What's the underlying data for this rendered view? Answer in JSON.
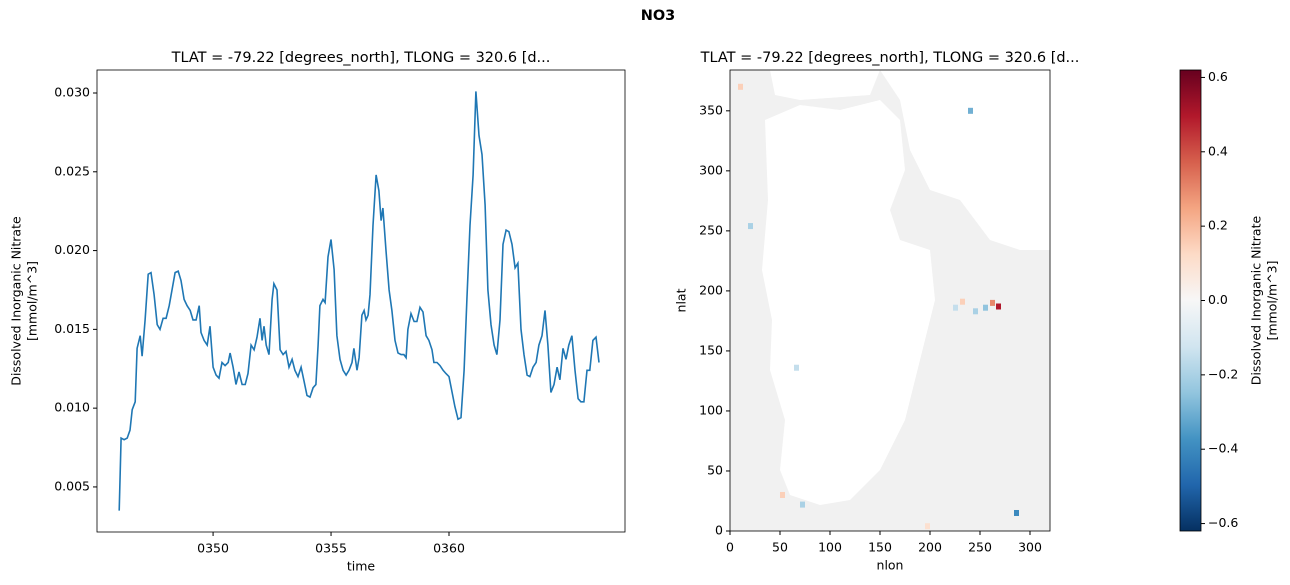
{
  "suptitle": "NO3",
  "chart_data": [
    {
      "type": "line",
      "title": "TLAT = -79.22 [degrees_north], TLONG = 320.6 [d...",
      "xlabel": "time",
      "ylabel": [
        "Dissolved Inorganic Nitrate",
        "[mmol/m^3]"
      ],
      "color": "#1f77b4",
      "x": [
        346.02,
        346.1,
        346.23,
        346.36,
        346.48,
        346.57,
        346.7,
        346.78,
        346.91,
        346.99,
        347.12,
        347.25,
        347.37,
        347.5,
        347.63,
        347.75,
        347.88,
        348.01,
        348.14,
        348.26,
        348.39,
        348.52,
        348.64,
        348.77,
        348.9,
        349.03,
        349.15,
        349.28,
        349.41,
        349.49,
        349.62,
        349.75,
        349.87,
        350.0,
        350.13,
        350.25,
        350.38,
        350.51,
        350.64,
        350.72,
        350.85,
        350.97,
        351.1,
        351.23,
        351.36,
        351.48,
        351.61,
        351.74,
        351.86,
        351.99,
        352.08,
        352.16,
        352.25,
        352.37,
        352.5,
        352.58,
        352.71,
        352.84,
        352.97,
        353.09,
        353.22,
        353.35,
        353.47,
        353.6,
        353.73,
        353.86,
        353.98,
        354.11,
        354.24,
        354.36,
        354.45,
        354.53,
        354.66,
        354.75,
        354.87,
        355.0,
        355.13,
        355.25,
        355.38,
        355.51,
        355.64,
        355.76,
        355.89,
        355.97,
        356.1,
        356.19,
        356.31,
        356.4,
        356.48,
        356.57,
        356.65,
        356.78,
        356.91,
        357.03,
        357.12,
        357.2,
        357.33,
        357.46,
        357.58,
        357.71,
        357.84,
        357.97,
        358.09,
        358.18,
        358.26,
        358.39,
        358.52,
        358.64,
        358.77,
        358.9,
        359.03,
        359.15,
        359.28,
        359.36,
        359.49,
        359.62,
        359.75,
        359.87,
        360.0,
        360.13,
        360.25,
        360.38,
        360.51,
        360.64,
        360.76,
        360.89,
        361.02,
        361.14,
        361.27,
        361.4,
        361.53,
        361.65,
        361.78,
        361.91,
        362.03,
        362.16,
        362.29,
        362.42,
        362.54,
        362.67,
        362.8,
        362.92,
        363.05,
        363.18,
        363.31,
        363.43,
        363.56,
        363.69,
        363.81,
        363.94,
        364.07,
        364.19,
        364.32,
        364.45,
        364.58,
        364.7,
        364.83,
        364.96,
        365.08,
        365.21,
        365.34,
        365.47,
        365.59,
        365.72,
        365.85,
        365.97,
        366.1,
        366.23,
        366.36
      ],
      "values": [
        0.0035,
        0.0081,
        0.008,
        0.0081,
        0.0086,
        0.0099,
        0.0104,
        0.0138,
        0.0146,
        0.0133,
        0.0156,
        0.0185,
        0.0186,
        0.0172,
        0.0153,
        0.015,
        0.0157,
        0.0157,
        0.0165,
        0.0175,
        0.0186,
        0.0187,
        0.0181,
        0.0169,
        0.0165,
        0.0162,
        0.0156,
        0.0156,
        0.0165,
        0.0148,
        0.0143,
        0.014,
        0.0152,
        0.0126,
        0.0121,
        0.0119,
        0.0129,
        0.0127,
        0.0129,
        0.0135,
        0.0126,
        0.0115,
        0.0123,
        0.0115,
        0.0115,
        0.0122,
        0.014,
        0.0137,
        0.0145,
        0.0157,
        0.0143,
        0.0152,
        0.014,
        0.0134,
        0.0169,
        0.0179,
        0.0175,
        0.0137,
        0.0134,
        0.0136,
        0.0126,
        0.0131,
        0.0124,
        0.012,
        0.0126,
        0.0117,
        0.0108,
        0.0107,
        0.0113,
        0.0115,
        0.014,
        0.0165,
        0.0169,
        0.0167,
        0.0196,
        0.0207,
        0.0188,
        0.0146,
        0.0131,
        0.0124,
        0.0121,
        0.0124,
        0.0129,
        0.0138,
        0.0124,
        0.0132,
        0.0159,
        0.0162,
        0.0156,
        0.0159,
        0.0172,
        0.0216,
        0.0248,
        0.0238,
        0.0219,
        0.0227,
        0.02,
        0.0175,
        0.0162,
        0.0143,
        0.0135,
        0.0134,
        0.0134,
        0.0132,
        0.015,
        0.016,
        0.0155,
        0.0155,
        0.0164,
        0.0161,
        0.0146,
        0.0143,
        0.0137,
        0.0129,
        0.0129,
        0.0127,
        0.0124,
        0.0122,
        0.012,
        0.011,
        0.0101,
        0.0093,
        0.0094,
        0.0124,
        0.0169,
        0.0216,
        0.0248,
        0.0301,
        0.0273,
        0.0261,
        0.0229,
        0.0175,
        0.0153,
        0.014,
        0.0134,
        0.0156,
        0.0204,
        0.0213,
        0.0212,
        0.0204,
        0.0189,
        0.0192,
        0.015,
        0.0134,
        0.0121,
        0.012,
        0.0126,
        0.0129,
        0.014,
        0.0146,
        0.0162,
        0.014,
        0.011,
        0.0115,
        0.0126,
        0.0118,
        0.0138,
        0.0131,
        0.014,
        0.0146,
        0.0124,
        0.0106,
        0.0104,
        0.0104,
        0.0124,
        0.0124,
        0.0143,
        0.0145,
        0.0129
      ],
      "xlim": [
        345.08,
        367.46
      ],
      "ylim": [
        0.00214,
        0.03146
      ],
      "xticks": [
        {
          "value": 350,
          "label": "0350"
        },
        {
          "value": 355,
          "label": "0355"
        },
        {
          "value": 360,
          "label": "0360"
        }
      ],
      "yticks": [
        0.005,
        {
          "value": 0.01,
          "label": "0.010"
        },
        0.015,
        {
          "value": 0.02,
          "label": "0.020"
        },
        0.025,
        {
          "value": 0.03,
          "label": "0.030"
        }
      ]
    },
    {
      "type": "heatmap",
      "title": "TLAT = -79.22 [degrees_north], TLONG = 320.6 [d...",
      "xlabel": "nlon",
      "ylabel": "nlat",
      "colorbar_label": [
        "Dissolved Inorganic Nitrate",
        "[mmol/m^3]"
      ],
      "colors": [
        "#053061",
        "#2166ac",
        "#4393c3",
        "#92c5de",
        "#d1e5f0",
        "#f7f7f7",
        "#fddbc7",
        "#f4a582",
        "#d6604d",
        "#b2182b",
        "#67001f"
      ],
      "cells": {
        "x": [
          268,
          262,
          255,
          245,
          232,
          225,
          286,
          20,
          66,
          240,
          52,
          197,
          10,
          72
        ],
        "y": [
          187,
          190,
          186,
          183,
          191,
          186,
          15,
          254,
          136,
          350,
          30,
          4,
          370,
          22
        ],
        "values": [
          0.5,
          0.3,
          -0.25,
          -0.2,
          0.15,
          -0.15,
          -0.4,
          -0.2,
          -0.15,
          -0.3,
          0.15,
          0.1,
          0.15,
          -0.2
        ]
      },
      "xlim": [
        0,
        320
      ],
      "ylim": [
        0,
        384
      ],
      "clim": [
        -0.62,
        0.62
      ],
      "xticks": [
        0,
        50,
        100,
        150,
        200,
        250,
        300
      ],
      "yticks": [
        0,
        50,
        100,
        150,
        200,
        250,
        300,
        350
      ],
      "cticks": [
        {
          "value": -0.6,
          "label": "−0.6"
        },
        {
          "value": -0.4,
          "label": "−0.4"
        },
        {
          "value": -0.2,
          "label": "−0.2"
        },
        {
          "value": 0,
          "label": "0.0"
        },
        0.2,
        0.4,
        0.6
      ]
    }
  ]
}
